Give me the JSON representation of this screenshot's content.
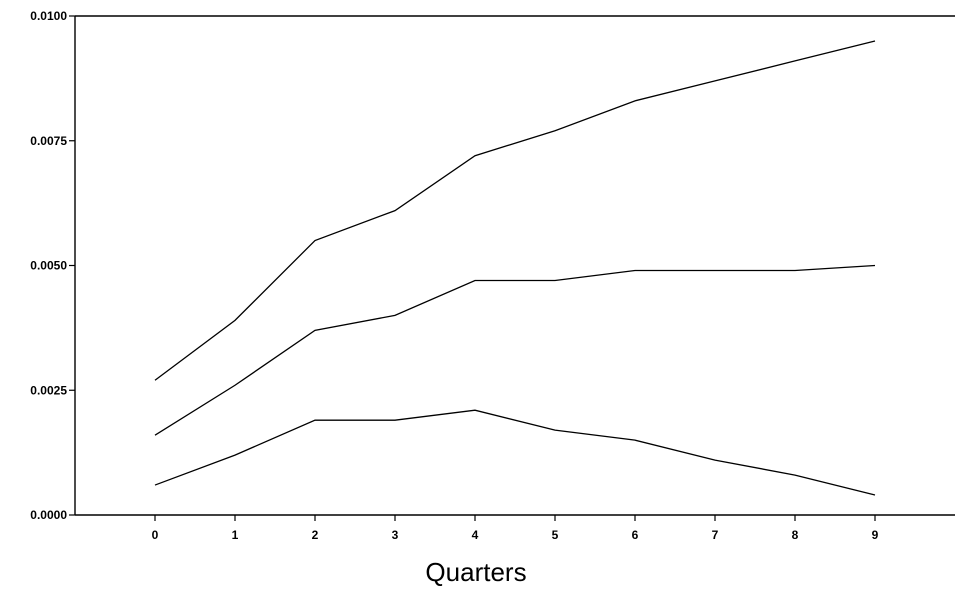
{
  "chart_data": {
    "type": "line",
    "x": [
      0,
      1,
      2,
      3,
      4,
      5,
      6,
      7,
      8,
      9
    ],
    "xlabel": "Quarters",
    "ylabel": "",
    "xlim": [
      -1,
      10
    ],
    "ylim": [
      0,
      0.01
    ],
    "yticks": [
      0,
      0.0025,
      0.005,
      0.0075,
      0.01
    ],
    "ytick_labels": [
      "0.0000",
      "0.0025",
      "0.0050",
      "0.0075",
      "0.0100"
    ],
    "xticks": [
      0,
      1,
      2,
      3,
      4,
      5,
      6,
      7,
      8,
      9
    ],
    "xtick_labels": [
      "0",
      "1",
      "2",
      "3",
      "4",
      "5",
      "6",
      "7",
      "8",
      "9"
    ],
    "grid": false,
    "legend": "none",
    "line_color": "#000000",
    "series": [
      {
        "values": [
          0.0027,
          0.0039,
          0.0055,
          0.0061,
          0.0072,
          0.0077,
          0.0083,
          0.0087,
          0.0091,
          0.0095
        ]
      },
      {
        "values": [
          0.0016,
          0.0026,
          0.0037,
          0.004,
          0.0047,
          0.0047,
          0.0049,
          0.0049,
          0.0049,
          0.005
        ]
      },
      {
        "values": [
          0.0006,
          0.0012,
          0.0019,
          0.0019,
          0.0021,
          0.0017,
          0.0015,
          0.0011,
          0.0008,
          0.0004
        ]
      }
    ]
  }
}
